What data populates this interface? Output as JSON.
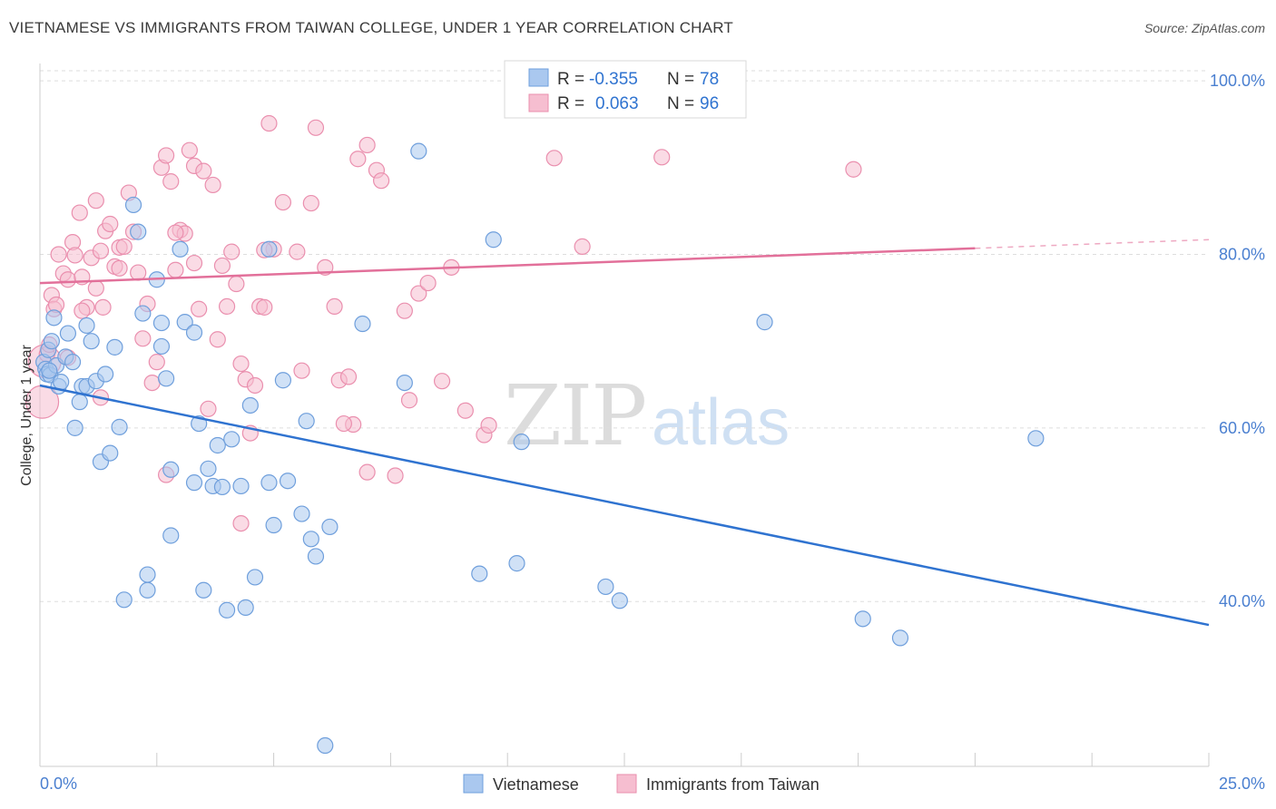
{
  "title": "VIETNAMESE VS IMMIGRANTS FROM TAIWAN COLLEGE, UNDER 1 YEAR CORRELATION CHART",
  "source": "Source: ZipAtlas.com",
  "watermark": {
    "zip": "ZIP",
    "atlas": "atlas"
  },
  "colors": {
    "vietnamese_fill": "#aac8ef",
    "vietnamese_stroke": "#6f9fdc",
    "vietnamese_line": "#2f73d0",
    "taiwan_fill": "#f6bed0",
    "taiwan_stroke": "#ea8fae",
    "taiwan_line": "#e2709a",
    "grid": "#dddddd",
    "tick_text": "#4a7fd0"
  },
  "legend": {
    "r_label": "R =",
    "n_label": "N =",
    "rows": [
      {
        "r": "-0.355",
        "n": "78"
      },
      {
        "r": "0.063",
        "n": "96"
      }
    ]
  },
  "bottom_legend": [
    "Vietnamese",
    "Immigrants from Taiwan"
  ],
  "chart_data": {
    "type": "scatter",
    "xlabel": "",
    "ylabel": "College, Under 1 year",
    "xlim": [
      0,
      25
    ],
    "ylim": [
      21,
      102
    ],
    "x_tick_labels": [
      "0.0%",
      "25.0%"
    ],
    "y_ticks": [
      40,
      60,
      80,
      100
    ],
    "y_tick_labels": [
      "40.0%",
      "60.0%",
      "80.0%",
      "100.0%"
    ],
    "grid": true,
    "legend_position": "top-center",
    "series": [
      {
        "name": "Vietnamese",
        "trend": {
          "x0": 0,
          "y0": 64.9,
          "x1": 25,
          "y1": 37.3
        },
        "points": [
          [
            0.08,
            67.6
          ],
          [
            0.12,
            66.8
          ],
          [
            0.15,
            66.2
          ],
          [
            0.18,
            69.0
          ],
          [
            0.22,
            66.1
          ],
          [
            0.25,
            70.0
          ],
          [
            0.3,
            72.7
          ],
          [
            0.35,
            67.2
          ],
          [
            0.4,
            64.8
          ],
          [
            0.45,
            65.3
          ],
          [
            0.55,
            68.2
          ],
          [
            0.6,
            70.9
          ],
          [
            0.7,
            67.6
          ],
          [
            0.75,
            60.0
          ],
          [
            0.85,
            63.0
          ],
          [
            0.9,
            64.8
          ],
          [
            1.0,
            64.8
          ],
          [
            1.1,
            70.0
          ],
          [
            1.2,
            65.4
          ],
          [
            1.3,
            56.1
          ],
          [
            1.4,
            66.2
          ],
          [
            1.5,
            57.1
          ],
          [
            1.6,
            69.3
          ],
          [
            1.7,
            60.1
          ],
          [
            1.8,
            40.2
          ],
          [
            2.0,
            85.7
          ],
          [
            2.1,
            82.6
          ],
          [
            2.2,
            73.2
          ],
          [
            2.3,
            43.1
          ],
          [
            2.3,
            41.3
          ],
          [
            2.5,
            77.1
          ],
          [
            2.6,
            69.4
          ],
          [
            2.7,
            65.7
          ],
          [
            2.8,
            55.2
          ],
          [
            2.8,
            47.6
          ],
          [
            3.0,
            80.6
          ],
          [
            3.1,
            72.2
          ],
          [
            3.3,
            71.0
          ],
          [
            3.4,
            60.5
          ],
          [
            3.5,
            41.3
          ],
          [
            3.6,
            55.3
          ],
          [
            3.7,
            53.3
          ],
          [
            3.8,
            58.0
          ],
          [
            3.9,
            53.2
          ],
          [
            4.0,
            39.0
          ],
          [
            4.1,
            58.7
          ],
          [
            4.3,
            53.3
          ],
          [
            4.4,
            39.3
          ],
          [
            4.5,
            62.6
          ],
          [
            4.6,
            42.8
          ],
          [
            4.9,
            80.6
          ],
          [
            5.0,
            48.8
          ],
          [
            5.2,
            65.5
          ],
          [
            5.6,
            50.1
          ],
          [
            5.8,
            47.2
          ],
          [
            5.9,
            45.2
          ],
          [
            6.2,
            48.6
          ],
          [
            6.9,
            72.0
          ],
          [
            7.8,
            65.2
          ],
          [
            8.1,
            91.9
          ],
          [
            9.4,
            43.2
          ],
          [
            9.7,
            81.7
          ],
          [
            10.2,
            44.4
          ],
          [
            10.3,
            58.4
          ],
          [
            12.1,
            41.7
          ],
          [
            12.4,
            40.1
          ],
          [
            15.5,
            72.2
          ],
          [
            17.6,
            38.0
          ],
          [
            18.4,
            35.8
          ],
          [
            21.3,
            58.8
          ],
          [
            6.1,
            23.4
          ],
          [
            1.0,
            71.8
          ],
          [
            2.6,
            72.1
          ],
          [
            5.3,
            53.9
          ],
          [
            0.2,
            66.6
          ],
          [
            3.3,
            53.7
          ],
          [
            4.9,
            53.7
          ],
          [
            5.7,
            60.8
          ]
        ]
      },
      {
        "name": "Immigrants from Taiwan",
        "trend": {
          "x0": 0,
          "y0": 76.7,
          "x1": 20,
          "y1": 80.7
        },
        "points": [
          [
            0.05,
            63.0
          ],
          [
            0.1,
            67.7
          ],
          [
            0.15,
            68.5
          ],
          [
            0.2,
            69.6
          ],
          [
            0.25,
            75.3
          ],
          [
            0.3,
            73.7
          ],
          [
            0.35,
            74.2
          ],
          [
            0.4,
            80.0
          ],
          [
            0.5,
            77.8
          ],
          [
            0.6,
            77.1
          ],
          [
            0.7,
            81.4
          ],
          [
            0.75,
            79.9
          ],
          [
            0.85,
            84.8
          ],
          [
            0.9,
            77.4
          ],
          [
            1.0,
            73.9
          ],
          [
            1.1,
            79.6
          ],
          [
            1.2,
            76.1
          ],
          [
            1.3,
            80.4
          ],
          [
            1.35,
            73.9
          ],
          [
            1.4,
            82.7
          ],
          [
            1.5,
            83.5
          ],
          [
            1.6,
            78.6
          ],
          [
            1.7,
            80.8
          ],
          [
            1.8,
            80.9
          ],
          [
            1.9,
            87.1
          ],
          [
            2.0,
            82.6
          ],
          [
            2.1,
            77.9
          ],
          [
            2.2,
            70.3
          ],
          [
            2.3,
            74.3
          ],
          [
            2.4,
            65.2
          ],
          [
            2.5,
            67.6
          ],
          [
            2.6,
            90.0
          ],
          [
            2.7,
            91.4
          ],
          [
            2.8,
            88.4
          ],
          [
            2.9,
            78.2
          ],
          [
            3.0,
            82.8
          ],
          [
            3.1,
            82.4
          ],
          [
            3.2,
            92.0
          ],
          [
            3.3,
            90.2
          ],
          [
            3.4,
            73.7
          ],
          [
            3.5,
            89.6
          ],
          [
            3.6,
            62.2
          ],
          [
            3.7,
            88.0
          ],
          [
            3.8,
            70.2
          ],
          [
            3.9,
            78.7
          ],
          [
            4.0,
            74.0
          ],
          [
            4.1,
            80.3
          ],
          [
            4.2,
            76.6
          ],
          [
            4.3,
            67.4
          ],
          [
            4.4,
            65.6
          ],
          [
            4.5,
            59.4
          ],
          [
            4.6,
            64.9
          ],
          [
            4.7,
            74.0
          ],
          [
            4.8,
            73.9
          ],
          [
            4.9,
            95.1
          ],
          [
            5.0,
            80.6
          ],
          [
            5.2,
            86.0
          ],
          [
            5.5,
            80.3
          ],
          [
            5.6,
            66.6
          ],
          [
            5.8,
            85.9
          ],
          [
            5.9,
            94.6
          ],
          [
            6.1,
            78.5
          ],
          [
            6.3,
            74.0
          ],
          [
            6.4,
            65.5
          ],
          [
            6.6,
            65.9
          ],
          [
            6.7,
            60.4
          ],
          [
            6.8,
            91.0
          ],
          [
            7.0,
            92.6
          ],
          [
            7.2,
            89.7
          ],
          [
            7.3,
            88.5
          ],
          [
            7.6,
            54.5
          ],
          [
            7.8,
            73.5
          ],
          [
            7.9,
            63.2
          ],
          [
            8.1,
            75.5
          ],
          [
            8.3,
            76.7
          ],
          [
            8.6,
            65.4
          ],
          [
            8.8,
            78.5
          ],
          [
            9.1,
            62.0
          ],
          [
            9.5,
            59.2
          ],
          [
            9.6,
            60.3
          ],
          [
            11.0,
            91.1
          ],
          [
            11.6,
            80.9
          ],
          [
            13.3,
            91.2
          ],
          [
            17.4,
            89.8
          ],
          [
            1.3,
            63.5
          ],
          [
            2.7,
            54.6
          ],
          [
            4.3,
            49.0
          ],
          [
            1.7,
            78.4
          ],
          [
            0.6,
            68.1
          ],
          [
            0.9,
            73.5
          ],
          [
            1.2,
            86.2
          ],
          [
            2.9,
            82.5
          ],
          [
            3.3,
            79.0
          ],
          [
            4.8,
            80.5
          ],
          [
            6.5,
            60.5
          ],
          [
            7.0,
            54.9
          ]
        ]
      }
    ]
  }
}
